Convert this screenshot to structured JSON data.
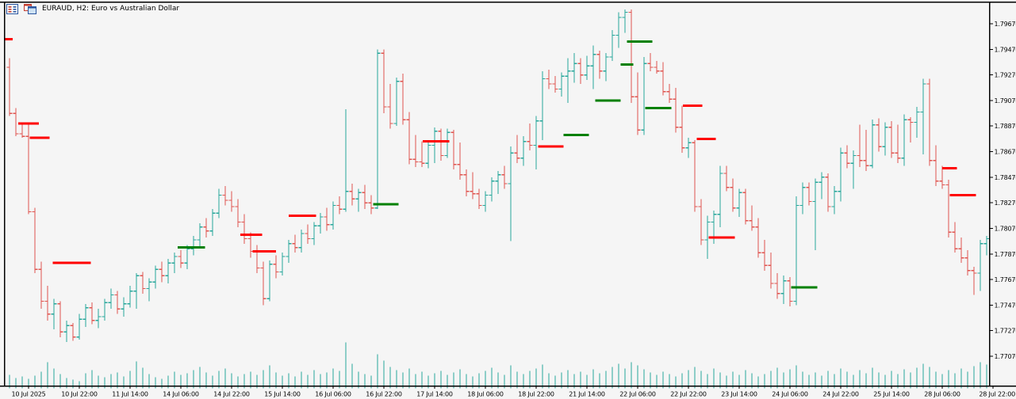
{
  "window": {
    "title": "EURAUD, H2:  Euro vs Australian Dollar"
  },
  "chart_data": {
    "type": "bar",
    "subtype": "ohlc-bars",
    "symbol": "EURAUD",
    "timeframe": "H2",
    "description": "Euro vs Australian Dollar",
    "grid": "off",
    "legend": "none",
    "y_axis": {
      "side": "right",
      "min": 1.7707,
      "max": 1.7967,
      "ticks": [
        "1.79670",
        "1.79470",
        "1.79270",
        "1.79070",
        "1.78870",
        "1.78670",
        "1.78470",
        "1.78270",
        "1.78070",
        "1.77870",
        "1.77670",
        "1.77470",
        "1.77270",
        "1.77070"
      ]
    },
    "x_axis": {
      "labels": [
        "10 Jul 2025",
        "10 Jul 22:00",
        "11 Jul 14:00",
        "14 Jul 06:00",
        "14 Jul 22:00",
        "15 Jul 14:00",
        "16 Jul 06:00",
        "16 Jul 22:00",
        "17 Jul 14:00",
        "18 Jul 06:00",
        "18 Jul 22:00",
        "21 Jul 14:00",
        "22 Jul 06:00",
        "22 Jul 22:00",
        "23 Jul 14:00",
        "24 Jul 06:00",
        "24 Jul 22:00",
        "25 Jul 14:00",
        "28 Jul 06:00",
        "28 Jul 22:00"
      ],
      "first_label_bar_index": 3,
      "bars_per_label": 8
    },
    "colors": {
      "up": "#26a69a",
      "down": "#e0544e",
      "volume": "#26a69a",
      "resistance": "#ff0000",
      "support": "#008000",
      "background": "#f5f5f5",
      "axis": "#000000"
    },
    "bars": [
      [
        1.7933,
        1.794,
        1.7895,
        1.7897
      ],
      [
        1.7897,
        1.7901,
        1.7879,
        1.7881
      ],
      [
        1.7881,
        1.789,
        1.7878,
        1.7879
      ],
      [
        1.7879,
        1.7888,
        1.7818,
        1.782
      ],
      [
        1.782,
        1.7823,
        1.7772,
        1.7775
      ],
      [
        1.7775,
        1.7781,
        1.7744,
        1.775
      ],
      [
        1.775,
        1.7762,
        1.7735,
        1.774
      ],
      [
        1.774,
        1.7752,
        1.7728,
        1.7748
      ],
      [
        1.7748,
        1.775,
        1.7722,
        1.7726
      ],
      [
        1.7726,
        1.7735,
        1.7718,
        1.7731
      ],
      [
        1.7731,
        1.7733,
        1.7719,
        1.7722
      ],
      [
        1.7722,
        1.774,
        1.772,
        1.7736
      ],
      [
        1.7736,
        1.7748,
        1.773,
        1.7745
      ],
      [
        1.7745,
        1.7749,
        1.7732,
        1.7735
      ],
      [
        1.7735,
        1.7744,
        1.7729,
        1.7738
      ],
      [
        1.7738,
        1.7752,
        1.7735,
        1.7749
      ],
      [
        1.7749,
        1.776,
        1.7744,
        1.7755
      ],
      [
        1.7755,
        1.7758,
        1.774,
        1.7744
      ],
      [
        1.7744,
        1.7753,
        1.7738,
        1.7748
      ],
      [
        1.7748,
        1.7762,
        1.7745,
        1.7758
      ],
      [
        1.7758,
        1.7772,
        1.7744,
        1.777
      ],
      [
        1.777,
        1.7773,
        1.7756,
        1.776
      ],
      [
        1.776,
        1.7768,
        1.775,
        1.7765
      ],
      [
        1.7765,
        1.7778,
        1.776,
        1.7775
      ],
      [
        1.7775,
        1.7781,
        1.7765,
        1.777
      ],
      [
        1.777,
        1.7783,
        1.7764,
        1.778
      ],
      [
        1.778,
        1.7788,
        1.7772,
        1.7785
      ],
      [
        1.7785,
        1.779,
        1.7776,
        1.778
      ],
      [
        1.778,
        1.7794,
        1.7775,
        1.7791
      ],
      [
        1.7791,
        1.7801,
        1.7786,
        1.7798
      ],
      [
        1.7798,
        1.7811,
        1.7793,
        1.7808
      ],
      [
        1.7808,
        1.7815,
        1.78,
        1.7805
      ],
      [
        1.7805,
        1.7822,
        1.7801,
        1.7819
      ],
      [
        1.7819,
        1.7838,
        1.7815,
        1.7833
      ],
      [
        1.7833,
        1.784,
        1.7825,
        1.7829
      ],
      [
        1.7829,
        1.7836,
        1.782,
        1.7824
      ],
      [
        1.7824,
        1.783,
        1.7808,
        1.7812
      ],
      [
        1.7812,
        1.7818,
        1.7795,
        1.7799
      ],
      [
        1.7799,
        1.7804,
        1.7784,
        1.7789
      ],
      [
        1.7789,
        1.7794,
        1.7772,
        1.7776
      ],
      [
        1.7776,
        1.7781,
        1.7747,
        1.7752
      ],
      [
        1.7752,
        1.7782,
        1.775,
        1.7779
      ],
      [
        1.7779,
        1.7786,
        1.7768,
        1.7773
      ],
      [
        1.7773,
        1.7788,
        1.777,
        1.7785
      ],
      [
        1.7785,
        1.7798,
        1.778,
        1.7795
      ],
      [
        1.7795,
        1.7802,
        1.7788,
        1.7792
      ],
      [
        1.7792,
        1.7806,
        1.7788,
        1.7803
      ],
      [
        1.7803,
        1.781,
        1.7795,
        1.7799
      ],
      [
        1.7799,
        1.7812,
        1.7794,
        1.7809
      ],
      [
        1.7809,
        1.7819,
        1.7803,
        1.7816
      ],
      [
        1.7816,
        1.7823,
        1.7805,
        1.781
      ],
      [
        1.781,
        1.7828,
        1.7806,
        1.7825
      ],
      [
        1.7825,
        1.7832,
        1.7818,
        1.7822
      ],
      [
        1.7822,
        1.79,
        1.782,
        1.7836
      ],
      [
        1.7836,
        1.7842,
        1.7825,
        1.783
      ],
      [
        1.783,
        1.7838,
        1.782,
        1.7835
      ],
      [
        1.7835,
        1.7841,
        1.7822,
        1.7827
      ],
      [
        1.7827,
        1.7833,
        1.7818,
        1.7823
      ],
      [
        1.7823,
        1.7947,
        1.7822,
        1.7944
      ],
      [
        1.7944,
        1.7947,
        1.7897,
        1.7902
      ],
      [
        1.7902,
        1.792,
        1.7885,
        1.7889
      ],
      [
        1.7889,
        1.7925,
        1.7887,
        1.7922
      ],
      [
        1.7922,
        1.7928,
        1.7888,
        1.7892
      ],
      [
        1.7892,
        1.7898,
        1.7857,
        1.7861
      ],
      [
        1.7861,
        1.788,
        1.7855,
        1.7859
      ],
      [
        1.7859,
        1.7875,
        1.7855,
        1.7858
      ],
      [
        1.7858,
        1.7875,
        1.7854,
        1.7872
      ],
      [
        1.7872,
        1.7886,
        1.7858,
        1.7883
      ],
      [
        1.7883,
        1.7885,
        1.786,
        1.7864
      ],
      [
        1.7864,
        1.7885,
        1.7862,
        1.7882
      ],
      [
        1.7882,
        1.7884,
        1.7853,
        1.7857
      ],
      [
        1.7857,
        1.7874,
        1.7845,
        1.7849
      ],
      [
        1.7849,
        1.7853,
        1.7832,
        1.7836
      ],
      [
        1.7836,
        1.7851,
        1.783,
        1.7834
      ],
      [
        1.7834,
        1.7838,
        1.7822,
        1.7825
      ],
      [
        1.7825,
        1.7836,
        1.782,
        1.7833
      ],
      [
        1.7833,
        1.7847,
        1.7828,
        1.7844
      ],
      [
        1.7844,
        1.7852,
        1.7834,
        1.7849
      ],
      [
        1.7849,
        1.7856,
        1.7838,
        1.7842
      ],
      [
        1.7842,
        1.7871,
        1.7797,
        1.7866
      ],
      [
        1.7866,
        1.788,
        1.7858,
        1.7862
      ],
      [
        1.7862,
        1.7879,
        1.7856,
        1.7875
      ],
      [
        1.7875,
        1.7889,
        1.7868,
        1.7872
      ],
      [
        1.7872,
        1.7895,
        1.7853,
        1.7891
      ],
      [
        1.7891,
        1.793,
        1.7876,
        1.7924
      ],
      [
        1.7924,
        1.7931,
        1.7916,
        1.792
      ],
      [
        1.792,
        1.7926,
        1.7913,
        1.7916
      ],
      [
        1.7916,
        1.7929,
        1.791,
        1.7926
      ],
      [
        1.7926,
        1.794,
        1.7905,
        1.793
      ],
      [
        1.793,
        1.7944,
        1.7921,
        1.7936
      ],
      [
        1.7936,
        1.794,
        1.792,
        1.7927
      ],
      [
        1.7927,
        1.7942,
        1.7923,
        1.7934
      ],
      [
        1.7934,
        1.795,
        1.7916,
        1.7943
      ],
      [
        1.7943,
        1.7946,
        1.7924,
        1.793
      ],
      [
        1.793,
        1.7944,
        1.7922,
        1.7941
      ],
      [
        1.7941,
        1.7962,
        1.7938,
        1.7958
      ],
      [
        1.7958,
        1.7976,
        1.7948,
        1.7972
      ],
      [
        1.7972,
        1.7978,
        1.796,
        1.7976
      ],
      [
        1.7976,
        1.7978,
        1.7905,
        1.791
      ],
      [
        1.791,
        1.7929,
        1.788,
        1.7884
      ],
      [
        1.7884,
        1.7941,
        1.788,
        1.7936
      ],
      [
        1.7936,
        1.7944,
        1.793,
        1.7933
      ],
      [
        1.7933,
        1.7938,
        1.7928,
        1.793
      ],
      [
        1.793,
        1.7937,
        1.7911,
        1.7914
      ],
      [
        1.7914,
        1.792,
        1.7905,
        1.7908
      ],
      [
        1.7908,
        1.7917,
        1.7882,
        1.7886
      ],
      [
        1.7886,
        1.7903,
        1.7866,
        1.787
      ],
      [
        1.787,
        1.7878,
        1.7862,
        1.7874
      ],
      [
        1.7874,
        1.7876,
        1.782,
        1.7824
      ],
      [
        1.7824,
        1.783,
        1.7794,
        1.7798
      ],
      [
        1.7798,
        1.7817,
        1.7783,
        1.7812
      ],
      [
        1.7812,
        1.7821,
        1.7795,
        1.7818
      ],
      [
        1.7818,
        1.7856,
        1.7808,
        1.785
      ],
      [
        1.785,
        1.7856,
        1.7836,
        1.7839
      ],
      [
        1.7839,
        1.7846,
        1.782,
        1.7823
      ],
      [
        1.7823,
        1.7838,
        1.7816,
        1.7835
      ],
      [
        1.7835,
        1.7838,
        1.781,
        1.7813
      ],
      [
        1.7813,
        1.7825,
        1.7805,
        1.7808
      ],
      [
        1.7808,
        1.7815,
        1.7784,
        1.7788
      ],
      [
        1.7788,
        1.7798,
        1.7774,
        1.7778
      ],
      [
        1.7778,
        1.7788,
        1.776,
        1.7764
      ],
      [
        1.7764,
        1.7772,
        1.7752,
        1.7756
      ],
      [
        1.7756,
        1.777,
        1.7748,
        1.7766
      ],
      [
        1.7766,
        1.7769,
        1.7746,
        1.775
      ],
      [
        1.775,
        1.7832,
        1.7747,
        1.7825
      ],
      [
        1.7825,
        1.7843,
        1.7818,
        1.7839
      ],
      [
        1.7839,
        1.7843,
        1.7825,
        1.7828
      ],
      [
        1.7828,
        1.7846,
        1.779,
        1.7843
      ],
      [
        1.7843,
        1.7851,
        1.783,
        1.7847
      ],
      [
        1.7847,
        1.785,
        1.782,
        1.7824
      ],
      [
        1.7824,
        1.784,
        1.7818,
        1.7836
      ],
      [
        1.7836,
        1.787,
        1.7828,
        1.7866
      ],
      [
        1.7866,
        1.7872,
        1.7854,
        1.7858
      ],
      [
        1.7858,
        1.7868,
        1.7838,
        1.7864
      ],
      [
        1.7864,
        1.7888,
        1.7855,
        1.786
      ],
      [
        1.786,
        1.7884,
        1.7852,
        1.7856
      ],
      [
        1.7856,
        1.7892,
        1.7854,
        1.7888
      ],
      [
        1.7888,
        1.7893,
        1.7867,
        1.7871
      ],
      [
        1.7871,
        1.789,
        1.7864,
        1.7886
      ],
      [
        1.7886,
        1.7891,
        1.7862,
        1.7866
      ],
      [
        1.7866,
        1.7888,
        1.7858,
        1.7862
      ],
      [
        1.7862,
        1.7896,
        1.7856,
        1.7892
      ],
      [
        1.7892,
        1.7894,
        1.7874,
        1.789
      ],
      [
        1.789,
        1.7902,
        1.7878,
        1.7898
      ],
      [
        1.7898,
        1.7924,
        1.7865,
        1.792
      ],
      [
        1.792,
        1.7924,
        1.7856,
        1.786
      ],
      [
        1.786,
        1.7872,
        1.784,
        1.7844
      ],
      [
        1.7844,
        1.7856,
        1.7838,
        1.7841
      ],
      [
        1.7841,
        1.7845,
        1.78,
        1.7804
      ],
      [
        1.7804,
        1.7812,
        1.7788,
        1.7791
      ],
      [
        1.7791,
        1.78,
        1.778,
        1.7784
      ],
      [
        1.7784,
        1.779,
        1.777,
        1.7774
      ],
      [
        1.7774,
        1.7777,
        1.7755,
        1.7772
      ],
      [
        1.7772,
        1.7798,
        1.7758,
        1.7795
      ],
      [
        1.7795,
        1.7801,
        1.7786,
        1.7799
      ]
    ],
    "volume": [
      14,
      10,
      12,
      9,
      13,
      18,
      30,
      22,
      15,
      10,
      8,
      6,
      16,
      20,
      13,
      11,
      15,
      17,
      12,
      19,
      31,
      23,
      15,
      11,
      9,
      13,
      18,
      14,
      16,
      20,
      24,
      17,
      13,
      19,
      22,
      16,
      12,
      15,
      18,
      14,
      20,
      26,
      17,
      13,
      16,
      12,
      18,
      14,
      20,
      15,
      17,
      22,
      19,
      55,
      28,
      18,
      15,
      13,
      40,
      32,
      24,
      20,
      17,
      22,
      15,
      18,
      13,
      16,
      19,
      14,
      17,
      21,
      15,
      12,
      16,
      19,
      23,
      17,
      14,
      26,
      18,
      15,
      19,
      22,
      27,
      16,
      13,
      17,
      20,
      15,
      18,
      14,
      21,
      16,
      19,
      24,
      28,
      22,
      30,
      26,
      21,
      17,
      14,
      18,
      15,
      12,
      16,
      20,
      24,
      19,
      15,
      22,
      17,
      13,
      18,
      14,
      20,
      16,
      12,
      15,
      19,
      23,
      17,
      21,
      26,
      18,
      14,
      17,
      13,
      19,
      15,
      22,
      18,
      14,
      20,
      16,
      23,
      17,
      14,
      19,
      15,
      21,
      17,
      23,
      28,
      24,
      18,
      15,
      20,
      16,
      22,
      18,
      25,
      30,
      27
    ],
    "segments": {
      "items": [
        {
          "i1": -2.0,
          "i2": 0.5,
          "price": 1.7955,
          "side": "res"
        },
        {
          "i1": 1.4,
          "i2": 4.6,
          "price": 1.7889,
          "side": "res"
        },
        {
          "i1": 3.2,
          "i2": 6.3,
          "price": 1.7878,
          "side": "res"
        },
        {
          "i1": 6.8,
          "i2": 12.8,
          "price": 1.778,
          "side": "res"
        },
        {
          "i1": 36.4,
          "i2": 39.8,
          "price": 1.7802,
          "side": "res"
        },
        {
          "i1": 38.3,
          "i2": 42.0,
          "price": 1.7789,
          "side": "res"
        },
        {
          "i1": 44.0,
          "i2": 48.3,
          "price": 1.7817,
          "side": "res"
        },
        {
          "i1": 65.1,
          "i2": 69.3,
          "price": 1.7875,
          "side": "res"
        },
        {
          "i1": 83.3,
          "i2": 87.3,
          "price": 1.7871,
          "side": "res"
        },
        {
          "i1": 106.1,
          "i2": 109.2,
          "price": 1.7903,
          "side": "res"
        },
        {
          "i1": 108.3,
          "i2": 111.3,
          "price": 1.7877,
          "side": "res"
        },
        {
          "i1": 110.2,
          "i2": 114.3,
          "price": 1.78,
          "side": "res"
        },
        {
          "i1": 147.0,
          "i2": 149.3,
          "price": 1.7854,
          "side": "res"
        },
        {
          "i1": 148.2,
          "i2": 152.3,
          "price": 1.7833,
          "side": "res"
        },
        {
          "i1": 26.5,
          "i2": 30.8,
          "price": 1.7792,
          "side": "sup"
        },
        {
          "i1": 57.3,
          "i2": 61.3,
          "price": 1.7826,
          "side": "sup"
        },
        {
          "i1": 87.3,
          "i2": 91.3,
          "price": 1.788,
          "side": "sup"
        },
        {
          "i1": 92.3,
          "i2": 96.3,
          "price": 1.7907,
          "side": "sup"
        },
        {
          "i1": 96.3,
          "i2": 98.3,
          "price": 1.7935,
          "side": "sup"
        },
        {
          "i1": 97.3,
          "i2": 101.3,
          "price": 1.7953,
          "side": "sup"
        },
        {
          "i1": 100.2,
          "i2": 104.3,
          "price": 1.7901,
          "side": "sup"
        },
        {
          "i1": 123.2,
          "i2": 127.3,
          "price": 1.7761,
          "side": "sup"
        }
      ]
    }
  }
}
